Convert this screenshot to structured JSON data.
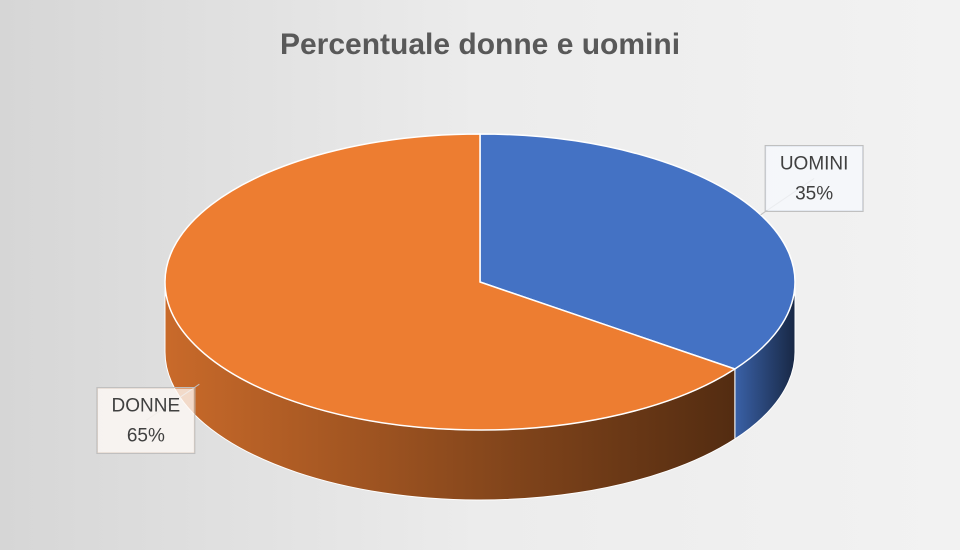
{
  "chart_data": {
    "type": "pie",
    "title": "Percentuale donne e uomini",
    "categories": [
      "UOMINI",
      "DONNE"
    ],
    "values": [
      35,
      65
    ],
    "value_labels": [
      "35%",
      "65%"
    ],
    "colors": [
      "#4472c4",
      "#ed7d31"
    ]
  }
}
